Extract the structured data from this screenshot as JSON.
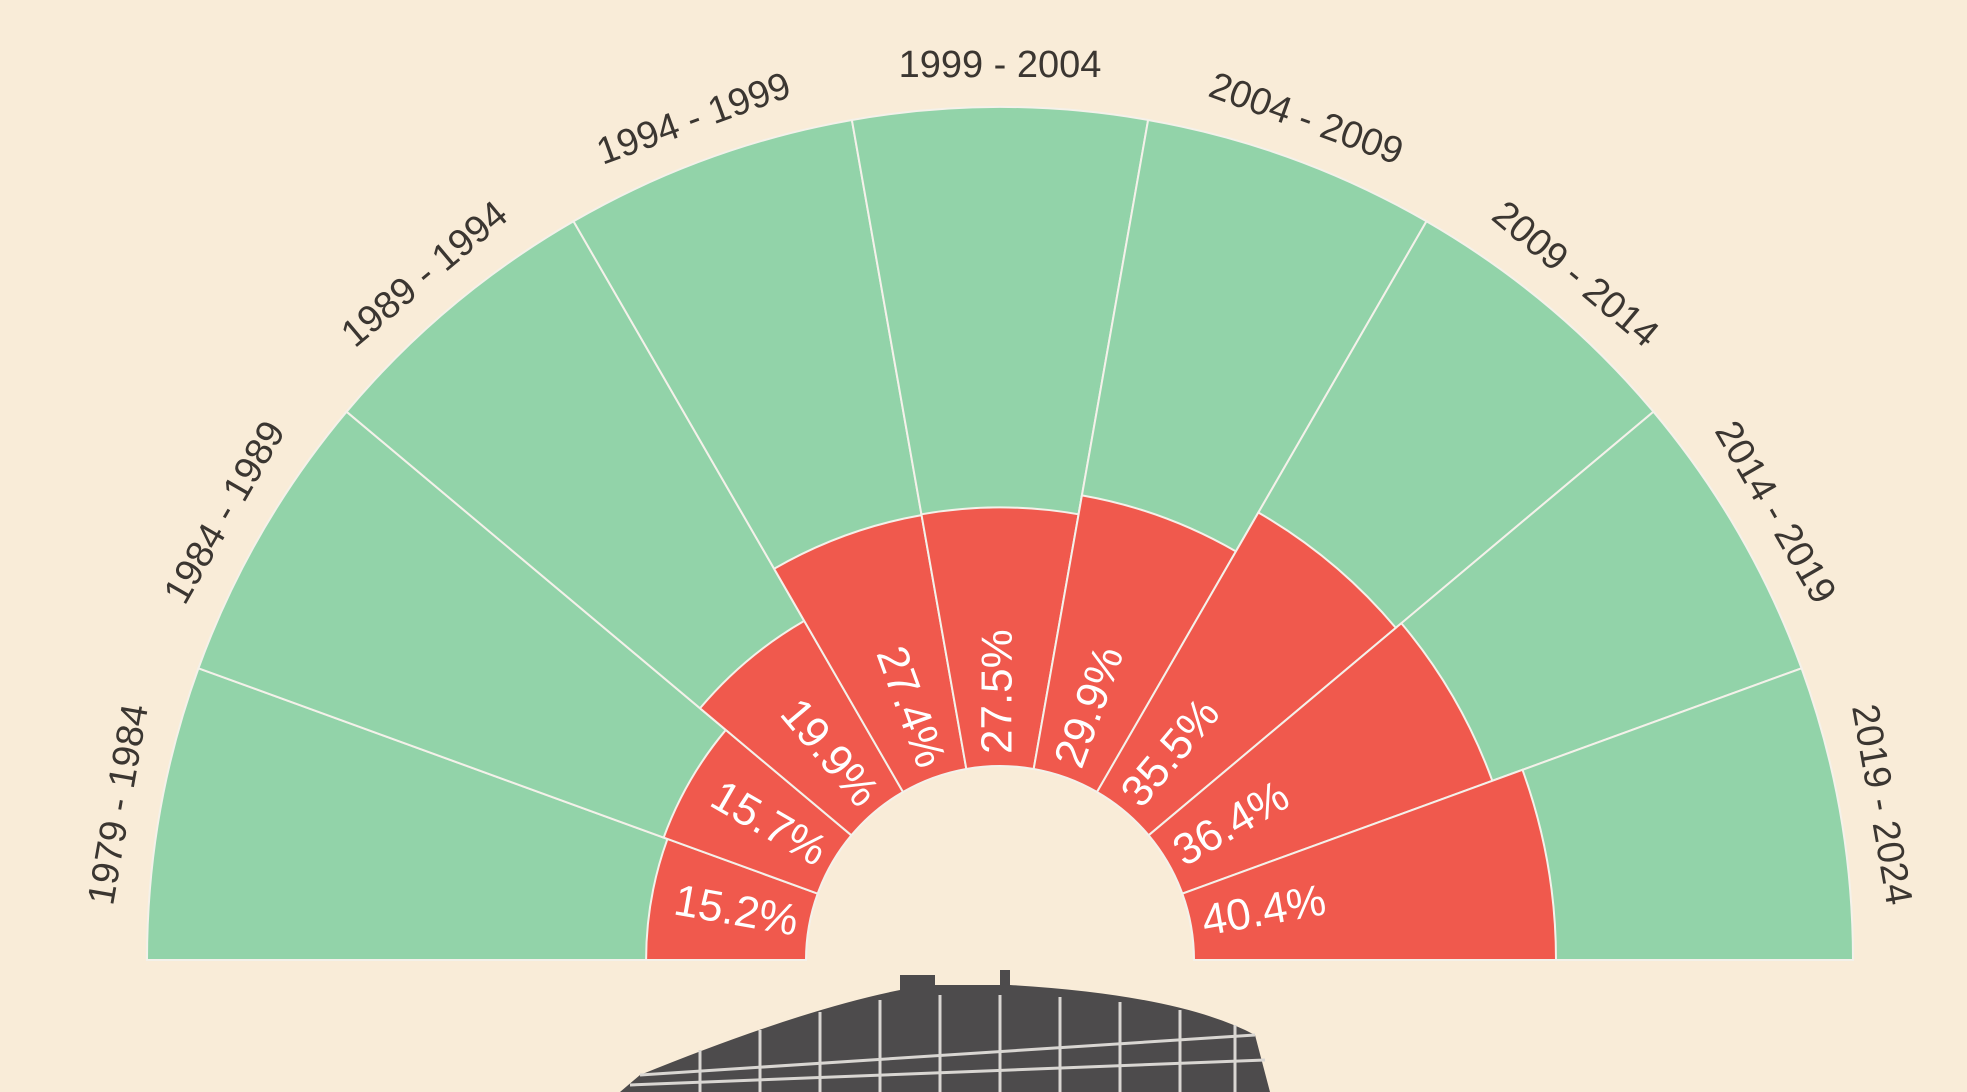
{
  "chart_data": {
    "type": "radial-bar",
    "categories": [
      "1979 - 1984",
      "1984 - 1989",
      "1989 - 1994",
      "1994 - 1999",
      "1999 - 2004",
      "2004 - 2009",
      "2009 - 2014",
      "2014 - 2019",
      "2019 - 2024"
    ],
    "values": [
      15.2,
      15.7,
      19.9,
      27.4,
      27.5,
      29.9,
      35.5,
      36.4,
      40.4
    ],
    "value_labels": [
      "15.2%",
      "15.7%",
      "19.9%",
      "27.4%",
      "27.5%",
      "29.9%",
      "35.5%",
      "36.4%",
      "40.4%"
    ],
    "color": "#f0594d",
    "background_color": "#92d3a9"
  }
}
